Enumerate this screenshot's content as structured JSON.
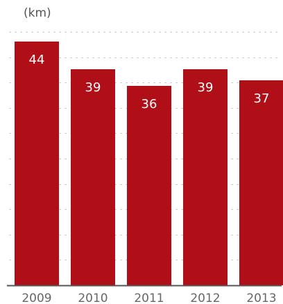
{
  "chart_data": {
    "type": "bar",
    "unit_label": "(km)",
    "categories": [
      "2009",
      "2010",
      "2011",
      "2012",
      "2013"
    ],
    "values": [
      44,
      39,
      36,
      39,
      37
    ],
    "data_labels": [
      "44",
      "39",
      "36",
      "39",
      "37"
    ],
    "ylim": [
      0,
      44
    ],
    "grid": true,
    "colors": {
      "bar": "#b00f18",
      "bar_label": "#ffffff",
      "grid": "#b5b5b5",
      "axis": "#555555",
      "tick_label": "#666666"
    }
  }
}
